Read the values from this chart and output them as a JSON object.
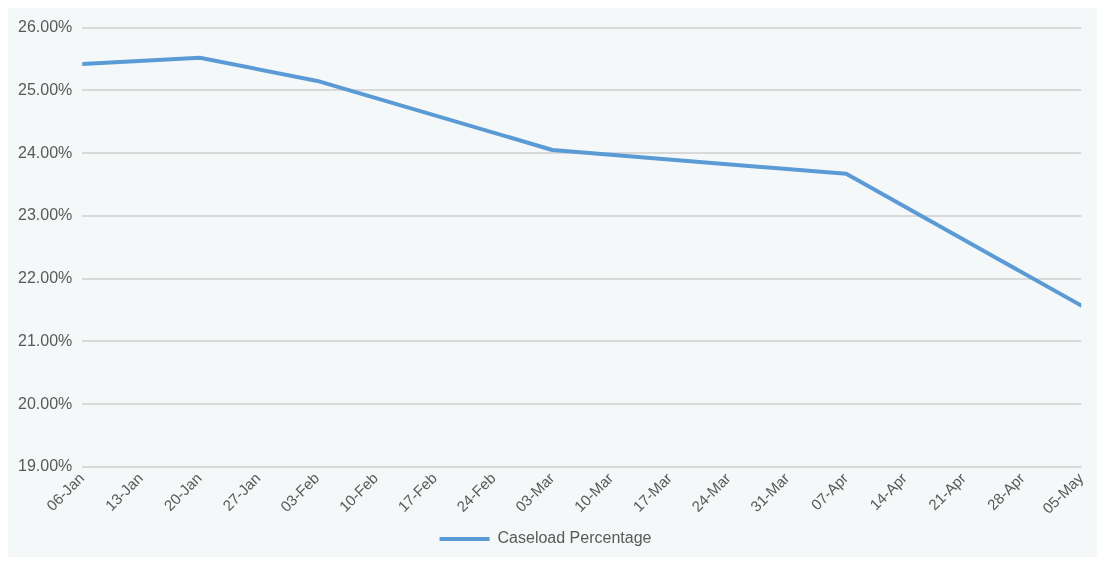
{
  "chart_data": {
    "type": "line",
    "x": [
      "--01-06",
      "--01-20",
      "--02-03",
      "--03-03",
      "--04-07",
      "--05-05"
    ],
    "series": [
      {
        "name": "Caseload Percentage",
        "color": "#5b9bd5",
        "values": [
          25.42,
          25.52,
          25.15,
          24.05,
          23.67,
          21.57
        ]
      }
    ],
    "xlim": [
      "--01-06",
      "--05-05"
    ],
    "xticks": [
      {
        "value": "--01-06",
        "label": "06-Jan"
      },
      {
        "value": "--01-13",
        "label": "13-Jan"
      },
      {
        "value": "--01-20",
        "label": "20-Jan"
      },
      {
        "value": "--01-27",
        "label": "27-Jan"
      },
      {
        "value": "--02-03",
        "label": "03-Feb"
      },
      {
        "value": "--02-10",
        "label": "10-Feb"
      },
      {
        "value": "--02-17",
        "label": "17-Feb"
      },
      {
        "value": "--02-24",
        "label": "24-Feb"
      },
      {
        "value": "--03-03",
        "label": "03-Mar"
      },
      {
        "value": "--03-10",
        "label": "10-Mar"
      },
      {
        "value": "--03-17",
        "label": "17-Mar"
      },
      {
        "value": "--03-24",
        "label": "24-Mar"
      },
      {
        "value": "--03-31",
        "label": "31-Mar"
      },
      {
        "value": "--04-07",
        "label": "07-Apr"
      },
      {
        "value": "--04-14",
        "label": "14-Apr"
      },
      {
        "value": "--04-21",
        "label": "21-Apr"
      },
      {
        "value": "--04-28",
        "label": "28-Apr"
      },
      {
        "value": "--05-05",
        "label": "05-May"
      }
    ],
    "ylim": [
      19,
      26
    ],
    "yticks": [
      {
        "value": 19,
        "label": "19.00%"
      },
      {
        "value": 20,
        "label": "20.00%"
      },
      {
        "value": 21,
        "label": "21.00%"
      },
      {
        "value": 22,
        "label": "22.00%"
      },
      {
        "value": 23,
        "label": "23.00%"
      },
      {
        "value": 24,
        "label": "24.00%"
      },
      {
        "value": 25,
        "label": "25.00%"
      },
      {
        "value": 26,
        "label": "26.00%"
      }
    ],
    "grid": "y",
    "legend": "bottom",
    "marker": "none",
    "line_style": "solid"
  }
}
